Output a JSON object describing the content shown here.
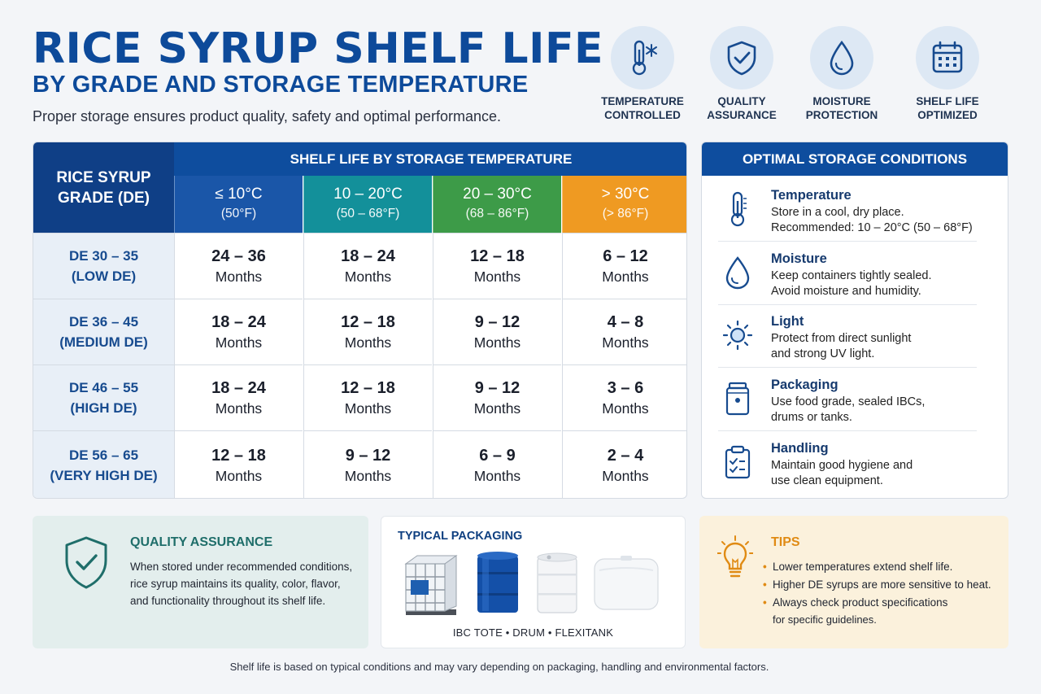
{
  "header": {
    "title": "RICE SYRUP SHELF LIFE",
    "subtitle": "BY GRADE AND STORAGE TEMPERATURE",
    "tagline": "Proper storage ensures product quality, safety and optimal performance."
  },
  "features": [
    {
      "label": "TEMPERATURE\nCONTROLLED",
      "icon": "thermometer-snowflake-icon"
    },
    {
      "label": "QUALITY\nASSURANCE",
      "icon": "shield-check-icon"
    },
    {
      "label": "MOISTURE\nPROTECTION",
      "icon": "droplet-icon"
    },
    {
      "label": "SHELF LIFE\nOPTIMIZED",
      "icon": "calendar-icon"
    }
  ],
  "table": {
    "grade_header": "RICE SYRUP\nGRADE (DE)",
    "shelf_header": "SHELF LIFE BY STORAGE TEMPERATURE",
    "temps": [
      {
        "range": "≤ 10°C",
        "f": "(50°F)",
        "color": "#1a56a8"
      },
      {
        "range": "10 – 20°C",
        "f": "(50 – 68°F)",
        "color": "#13909a"
      },
      {
        "range": "20 – 30°C",
        "f": "(68 – 86°F)",
        "color": "#3d9b48"
      },
      {
        "range": "> 30°C",
        "f": "(> 86°F)",
        "color": "#ef9a22"
      }
    ],
    "rows": [
      {
        "grade": "DE 30 – 35",
        "desc": "(LOW DE)",
        "values": [
          "24 – 36",
          "18 – 24",
          "12 – 18",
          "6 – 12"
        ]
      },
      {
        "grade": "DE 36 – 45",
        "desc": "(MEDIUM DE)",
        "values": [
          "18 – 24",
          "12 – 18",
          "9 – 12",
          "4 – 8"
        ]
      },
      {
        "grade": "DE 46 – 55",
        "desc": "(HIGH DE)",
        "values": [
          "18 – 24",
          "12 – 18",
          "9 – 12",
          "3 – 6"
        ]
      },
      {
        "grade": "DE 56 – 65",
        "desc": "(VERY HIGH DE)",
        "values": [
          "12 – 18",
          "9 – 12",
          "6 – 9",
          "2 – 4"
        ]
      }
    ],
    "unit": "Months"
  },
  "optimal": {
    "title": "OPTIMAL STORAGE CONDITIONS",
    "items": [
      {
        "title": "Temperature",
        "text": "Store in a cool, dry place.\nRecommended: 10 – 20°C (50 – 68°F)",
        "icon": "thermometer-icon"
      },
      {
        "title": "Moisture",
        "text": "Keep containers tightly sealed.\nAvoid moisture and humidity.",
        "icon": "droplet-icon"
      },
      {
        "title": "Light",
        "text": "Protect from direct sunlight\nand strong UV light.",
        "icon": "sun-icon"
      },
      {
        "title": "Packaging",
        "text": "Use food grade, sealed IBCs,\ndrums or tanks.",
        "icon": "container-icon"
      },
      {
        "title": "Handling",
        "text": "Maintain good hygiene and\nuse clean equipment.",
        "icon": "clipboard-icon"
      }
    ]
  },
  "quality": {
    "title": "QUALITY ASSURANCE",
    "text": "When stored under recommended conditions,\nrice syrup maintains its quality, color, flavor,\nand functionality throughout its shelf life."
  },
  "packaging": {
    "title": "TYPICAL PACKAGING",
    "labels": "IBC TOTE  •  DRUM  •  FLEXITANK"
  },
  "tips": {
    "title": "TIPS",
    "items": [
      "Lower temperatures extend shelf life.",
      "Higher DE syrups are more sensitive to heat.",
      "Always check product specifications"
    ],
    "continuation": "for specific guidelines."
  },
  "footnote": "Shelf life is based on typical conditions and may vary depending on packaging, handling and environmental factors."
}
